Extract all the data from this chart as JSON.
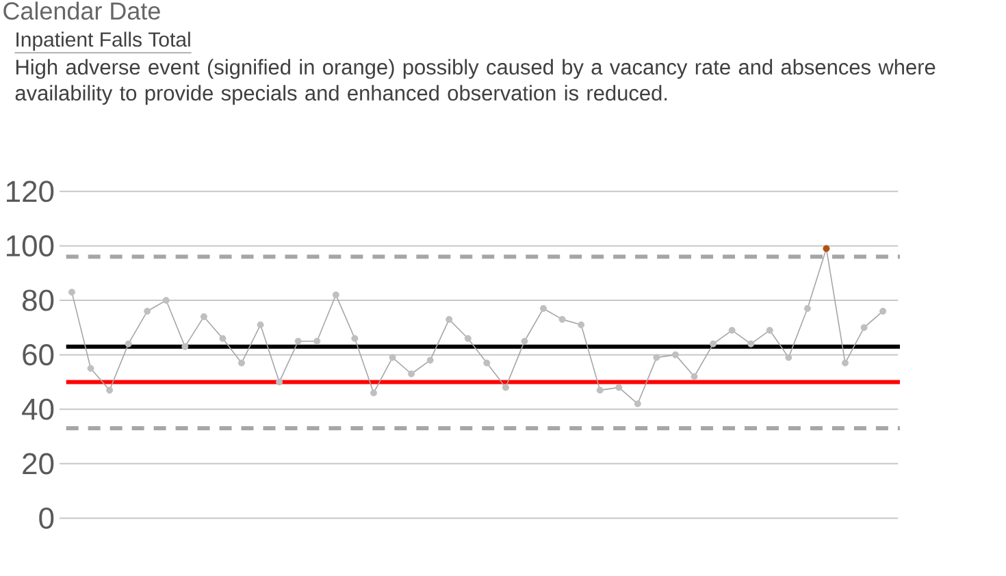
{
  "chart_data": {
    "type": "line",
    "title": "Inpatient Falls Total",
    "subtitle": "High adverse event (signified in orange) possibly caused by a vacancy rate and absences where availability to provide specials and enhanced observation is reduced.",
    "annotations": [
      "Calendar Date"
    ],
    "categories": [
      null,
      null,
      null,
      null,
      null,
      null,
      null,
      null,
      null,
      null,
      null,
      null,
      null,
      null,
      null,
      null,
      null,
      null,
      null,
      null,
      null,
      null,
      null,
      null,
      null,
      null,
      null,
      null,
      null,
      null,
      null,
      null,
      null,
      null,
      null,
      null,
      null,
      null,
      null,
      null,
      null,
      null,
      null,
      null
    ],
    "series": [
      {
        "color": "#a6a6a6",
        "marker": "circle",
        "values": [
          83,
          55,
          47,
          64,
          76,
          80,
          63,
          74,
          66,
          57,
          71,
          50,
          65,
          65,
          82,
          66,
          46,
          59,
          53,
          58,
          73,
          66,
          57,
          48,
          65,
          77,
          73,
          71,
          47,
          48,
          42,
          59,
          60,
          52,
          64,
          69,
          64,
          69,
          59,
          77,
          99,
          57,
          70,
          76
        ],
        "colors": [
          "#bfbfbf",
          "#bfbfbf",
          "#bfbfbf",
          "#bfbfbf",
          "#bfbfbf",
          "#bfbfbf",
          "#bfbfbf",
          "#bfbfbf",
          "#bfbfbf",
          "#bfbfbf",
          "#bfbfbf",
          "#bfbfbf",
          "#bfbfbf",
          "#bfbfbf",
          "#bfbfbf",
          "#bfbfbf",
          "#bfbfbf",
          "#bfbfbf",
          "#bfbfbf",
          "#bfbfbf",
          "#bfbfbf",
          "#bfbfbf",
          "#bfbfbf",
          "#bfbfbf",
          "#bfbfbf",
          "#bfbfbf",
          "#bfbfbf",
          "#bfbfbf",
          "#bfbfbf",
          "#bfbfbf",
          "#bfbfbf",
          "#bfbfbf",
          "#bfbfbf",
          "#bfbfbf",
          "#bfbfbf",
          "#bfbfbf",
          "#bfbfbf",
          "#bfbfbf",
          "#bfbfbf",
          "#bfbfbf",
          "#b5500f",
          "#bfbfbf",
          "#bfbfbf",
          "#bfbfbf"
        ]
      }
    ],
    "ref_lines": [
      {
        "axis": "y",
        "value": 96,
        "color": "#a6a6a6",
        "line_style": "dashed"
      },
      {
        "axis": "y",
        "value": 63,
        "color": "#000000",
        "line_style": "solid"
      },
      {
        "axis": "y",
        "value": 50,
        "color": "#ff0000",
        "line_style": "solid"
      },
      {
        "axis": "y",
        "value": 33,
        "color": "#a6a6a6",
        "line_style": "dashed"
      }
    ],
    "ylim": [
      0,
      120
    ],
    "yticks": [
      0,
      20,
      40,
      60,
      80,
      100,
      120
    ],
    "grid": "y",
    "tick_labels": "y"
  }
}
